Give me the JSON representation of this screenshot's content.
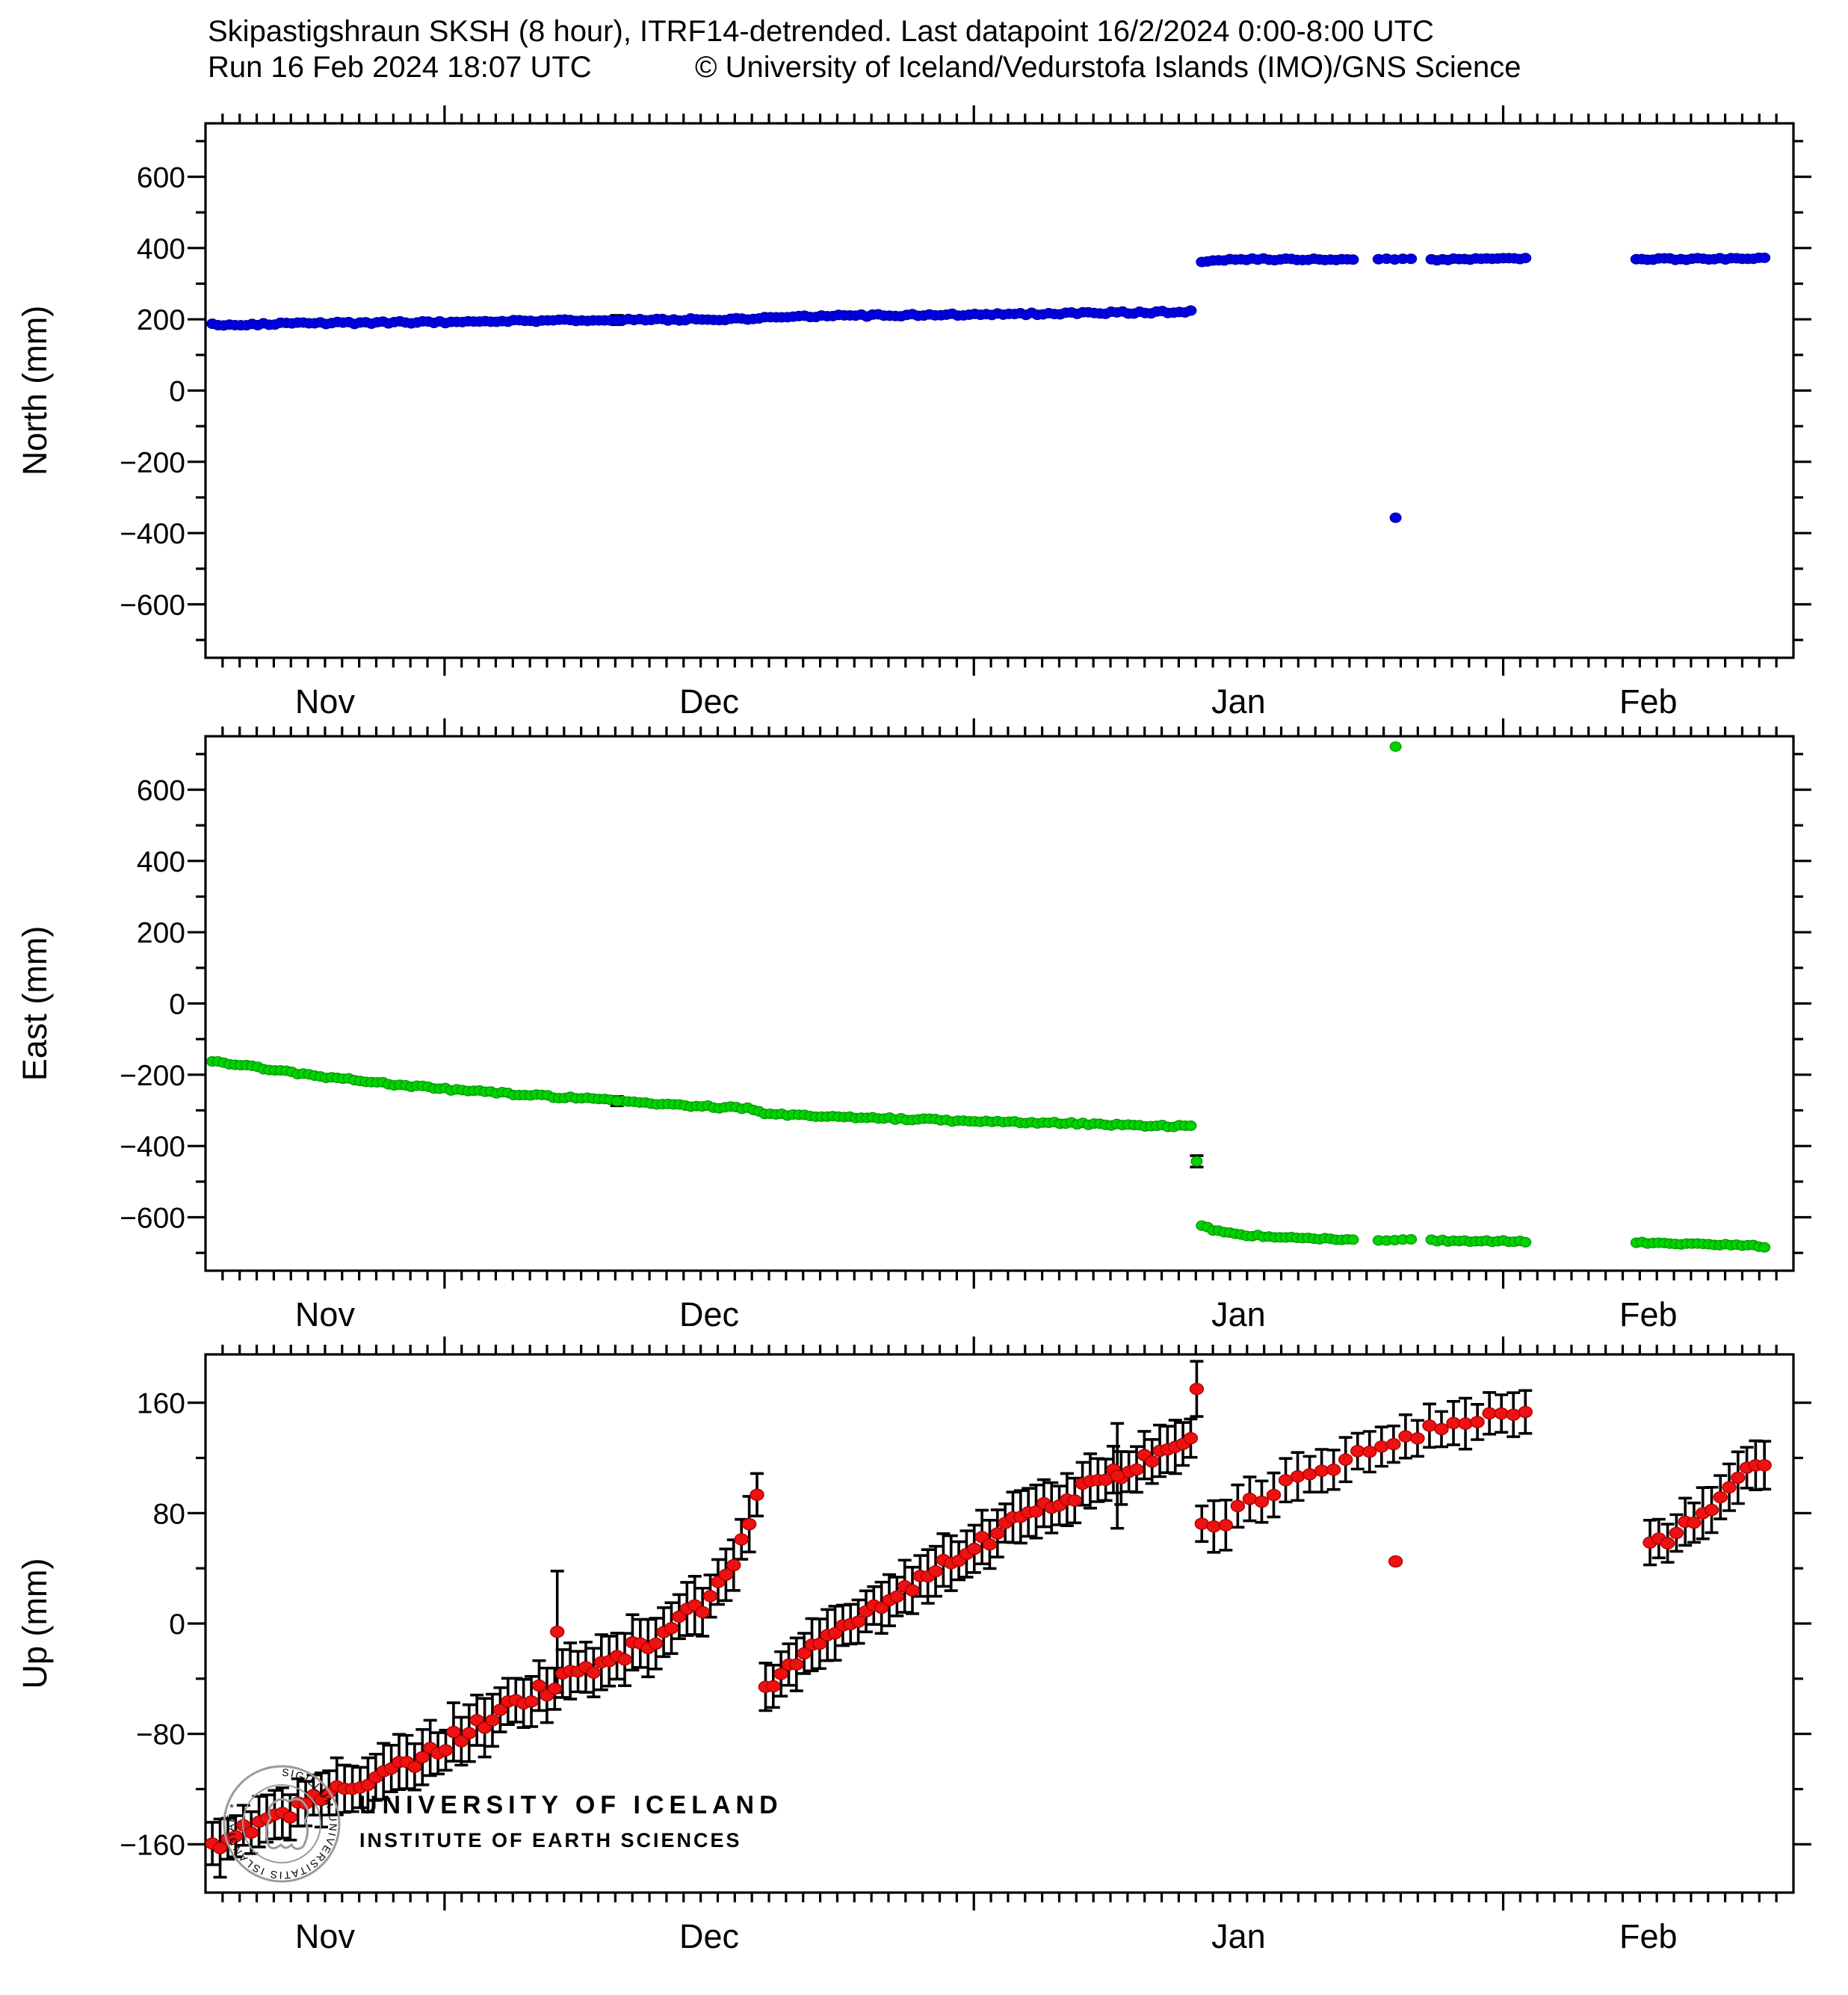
{
  "header": {
    "title_line1": "Skipastigshraun SKSH (8 hour), ITRF14-detrended.  Last datapoint 16/2/2024 0:00-8:00 UTC",
    "run_line": "Run 16 Feb 2024 18:07 UTC",
    "copyright": "© University of Iceland/Vedurstofa Islands (IMO)/GNS Science"
  },
  "logo": {
    "university": "UNIVERSITY OF ICELAND",
    "institute": "INSTITUTE OF EARTH SCIENCES",
    "seal_text": "SIGILLUM UNIVERSITATIS ISLANDIAE *",
    "gray": "#9a9a9a",
    "blue": "#2c5590"
  },
  "axes": {
    "x_start_day": 0,
    "x_end_day": 93,
    "month_major_tick_days": [
      14,
      45,
      76
    ],
    "months": [
      {
        "label": "Nov",
        "t": 7
      },
      {
        "label": "Dec",
        "t": 29.5
      },
      {
        "label": "Jan",
        "t": 60.5
      },
      {
        "label": "Feb",
        "t": 84.5
      }
    ],
    "x_epoch_note": "day 0 = 17 Nov 2023, daily minor ticks, major ticks at month starts"
  },
  "chart_data": [
    {
      "type": "scatter",
      "ylabel": "North (mm)",
      "color": "#0000e6",
      "edge": "#0000a8",
      "ylim": [
        -750,
        750
      ],
      "yticks_major": [
        600,
        400,
        200,
        0,
        -200,
        -400,
        -600
      ],
      "ytick_minor_step": 100,
      "point_rx": 7.3,
      "point_ry": 6.3,
      "segments": [
        {
          "rate": 3,
          "noise": 3.2,
          "err": 0,
          "waypoints": [
            [
              0.4,
              185
            ],
            [
              5,
              188
            ],
            [
              10,
              190.5
            ],
            [
              14,
              192.5
            ],
            [
              20,
              196.5
            ],
            [
              23.7,
              198
            ]
          ]
        },
        {
          "rate": 3,
          "noise": 3.2,
          "err": 0,
          "waypoints": [
            [
              24.1,
              198.5
            ],
            [
              30,
              200
            ],
            [
              32.2,
              201
            ],
            [
              32.7,
              207.5
            ],
            [
              36,
              209.5
            ],
            [
              40,
              211
            ],
            [
              45,
              213.5
            ],
            [
              50,
              216.5
            ],
            [
              55,
              219.5
            ],
            [
              57.7,
              221.5
            ]
          ]
        },
        {
          "rate": 3,
          "noise": 2.6,
          "err": 0,
          "waypoints": [
            [
              58.35,
              361
            ],
            [
              59.2,
              366.5
            ],
            [
              60.5,
              368
            ],
            [
              63,
              368.5
            ],
            [
              65,
              368
            ],
            [
              67.2,
              369.5
            ]
          ]
        },
        {
          "rate": 2,
          "noise": 2.2,
          "err": 0,
          "waypoints": [
            [
              68.7,
              368.5
            ],
            [
              70.6,
              369.5
            ]
          ]
        },
        {
          "rate": 3,
          "noise": 2.4,
          "err": 0,
          "waypoints": [
            [
              71.8,
              367.5
            ],
            [
              74.5,
              369
            ],
            [
              77.3,
              370
            ]
          ]
        },
        {
          "rate": 3,
          "noise": 2.4,
          "err": 0,
          "waypoints": [
            [
              83.8,
              368.5
            ],
            [
              88,
              369.5
            ],
            [
              91.3,
              370.5
            ]
          ]
        }
      ],
      "special_points": [
        {
          "t": 24.1,
          "v": 198,
          "err": 13
        }
      ],
      "outliers": [
        {
          "t": 69.7,
          "v": -357
        }
      ]
    },
    {
      "type": "scatter",
      "ylabel": "East (mm)",
      "color": "#00d400",
      "edge": "#009a00",
      "ylim": [
        -750,
        750
      ],
      "yticks_major": [
        600,
        400,
        200,
        0,
        -200,
        -400,
        -600
      ],
      "ytick_minor_step": 100,
      "point_rx": 7.3,
      "point_ry": 6.3,
      "segments": [
        {
          "rate": 3,
          "noise": 3.2,
          "err": 0,
          "waypoints": [
            [
              0.4,
              -160
            ],
            [
              3,
              -180
            ],
            [
              6,
              -200
            ],
            [
              10,
              -222
            ],
            [
              14,
              -240
            ],
            [
              18,
              -254
            ],
            [
              23.7,
              -272
            ]
          ]
        },
        {
          "rate": 3,
          "noise": 3.2,
          "err": 0,
          "waypoints": [
            [
              24.1,
              -274
            ],
            [
              28,
              -286
            ],
            [
              32.2,
              -296
            ],
            [
              32.7,
              -309
            ],
            [
              36,
              -316
            ],
            [
              40,
              -323
            ],
            [
              45,
              -330
            ],
            [
              50,
              -336
            ],
            [
              54,
              -341
            ],
            [
              57.7,
              -345
            ]
          ]
        },
        {
          "rate": 3,
          "noise": 2.8,
          "err": 0,
          "waypoints": [
            [
              58.35,
              -621
            ],
            [
              58.8,
              -633
            ],
            [
              59.6,
              -642
            ],
            [
              60.6,
              -649
            ],
            [
              61.8,
              -653
            ],
            [
              63.5,
              -658
            ],
            [
              65.5,
              -661
            ],
            [
              67.2,
              -663
            ]
          ]
        },
        {
          "rate": 2,
          "noise": 2.2,
          "err": 0,
          "waypoints": [
            [
              68.7,
              -663
            ],
            [
              70.6,
              -664
            ]
          ]
        },
        {
          "rate": 3,
          "noise": 2.4,
          "err": 0,
          "waypoints": [
            [
              71.8,
              -665
            ],
            [
              74.5,
              -667
            ],
            [
              77.3,
              -668
            ]
          ]
        },
        {
          "rate": 3,
          "noise": 2.4,
          "err": 0,
          "waypoints": [
            [
              83.8,
              -671
            ],
            [
              87,
              -675
            ],
            [
              89.5,
              -677
            ],
            [
              91.3,
              -682
            ]
          ]
        }
      ],
      "special_points": [
        {
          "t": 24.1,
          "v": -274,
          "err": 13
        },
        {
          "t": 58.05,
          "v": -443,
          "err": 16
        }
      ],
      "outliers": [
        {
          "t": 69.7,
          "v": 721
        }
      ]
    },
    {
      "type": "scatter",
      "ylabel": "Up (mm)",
      "color": "#ee1111",
      "edge": "#b00000",
      "ylim": [
        -195,
        195
      ],
      "yticks_major": [
        160,
        80,
        0,
        -80,
        -160
      ],
      "ytick_minor_step": 40,
      "point_rx": 9,
      "point_ry": 7.5,
      "segments": [
        {
          "rate": 2.2,
          "noise": 6,
          "err": 17,
          "waypoints": [
            [
              0.4,
              -160
            ],
            [
              4,
              -141
            ],
            [
              8,
              -121
            ],
            [
              12,
              -101
            ],
            [
              16,
              -72
            ],
            [
              20,
              -47
            ],
            [
              23,
              -30
            ],
            [
              26,
              -13
            ],
            [
              29,
              12
            ],
            [
              31,
              48
            ],
            [
              32.3,
              88
            ]
          ]
        },
        {
          "rate": 2.2,
          "noise": 5.5,
          "err": 16,
          "waypoints": [
            [
              32.8,
              -46
            ],
            [
              34,
              -33
            ],
            [
              36,
              -16
            ],
            [
              38,
              2
            ],
            [
              40,
              18
            ],
            [
              43,
              41
            ],
            [
              46,
              63
            ],
            [
              49,
              83
            ],
            [
              52,
              101
            ],
            [
              55,
              119
            ],
            [
              57.7,
              132
            ]
          ]
        },
        {
          "rate": 1.4,
          "noise": 5,
          "err": 15,
          "waypoints": [
            [
              58.35,
              74
            ],
            [
              59.2,
              70
            ],
            [
              60.5,
              81
            ],
            [
              62,
              93
            ],
            [
              63.5,
              101
            ],
            [
              65.5,
              113
            ],
            [
              67.5,
              123
            ],
            [
              69,
              131
            ],
            [
              70.5,
              137
            ],
            [
              72,
              141
            ],
            [
              73.5,
              145
            ],
            [
              75,
              149
            ],
            [
              76.2,
              152
            ],
            [
              77.3,
              155
            ]
          ]
        },
        {
          "rate": 2,
          "noise": 5,
          "err": 15,
          "waypoints": [
            [
              84.6,
              54
            ],
            [
              86,
              66
            ],
            [
              87.2,
              76
            ],
            [
              88.2,
              86
            ],
            [
              89,
              101
            ],
            [
              89.8,
              110
            ],
            [
              90.5,
              112
            ],
            [
              91.3,
              119
            ]
          ]
        }
      ],
      "special_points": [
        {
          "t": 20.6,
          "v": -6,
          "err": 44
        },
        {
          "t": 53.4,
          "v": 107,
          "err": 38
        },
        {
          "t": 58.05,
          "v": 170,
          "err": 20
        }
      ],
      "outliers": [
        {
          "t": 69.7,
          "v": 45
        }
      ]
    }
  ]
}
